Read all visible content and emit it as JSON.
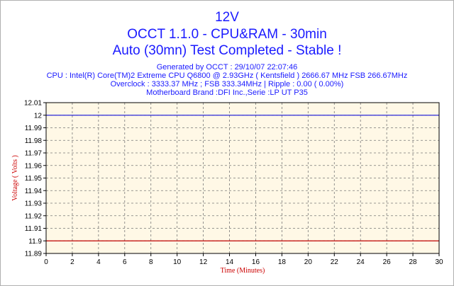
{
  "chart_data": {
    "type": "line",
    "title": "12V",
    "subtitle": "OCCT 1.1.0 - CPU&RAM - 30min",
    "subtitle2": "Auto (30mn) Test Completed - Stable !",
    "info_lines": [
      "Generated by OCCT : 29/10/07 22:07:46",
      "CPU : Intel(R) Core(TM)2 Extreme CPU Q6800  @ 2.93GHz ( Kentsfield ) 2666.67 MHz FSB 266.67MHz",
      "Overclock : 3333.37 MHz ; FSB 333.34MHz | Ripple : 0.00 ( 0.00%)",
      "Motherboard Brand :DFI Inc.,Serie :LP UT P35"
    ],
    "xlabel": "Time (Minutes)",
    "ylabel": "Voltage ( Volts )",
    "xlim": [
      0,
      30
    ],
    "ylim": [
      11.89,
      12.01
    ],
    "x_ticks": [
      0,
      2,
      4,
      6,
      8,
      10,
      12,
      14,
      16,
      18,
      20,
      22,
      24,
      26,
      28,
      30
    ],
    "y_ticks": [
      12.01,
      12,
      11.99,
      11.98,
      11.97,
      11.96,
      11.95,
      11.94,
      11.93,
      11.92,
      11.91,
      11.9,
      11.89
    ],
    "grid": true,
    "legend": "none",
    "series": [
      {
        "values": [
          [
            0,
            12.0
          ],
          [
            30,
            12.0
          ]
        ],
        "color": "#2b2bd8"
      },
      {
        "values": [
          [
            0,
            11.9
          ],
          [
            30,
            11.9
          ]
        ],
        "color": "#c00000"
      }
    ],
    "colors": {
      "title": "#1a1aff",
      "plot_background": "#fff8e6",
      "axis_title": "#cc0000",
      "grid": "#777777"
    }
  }
}
